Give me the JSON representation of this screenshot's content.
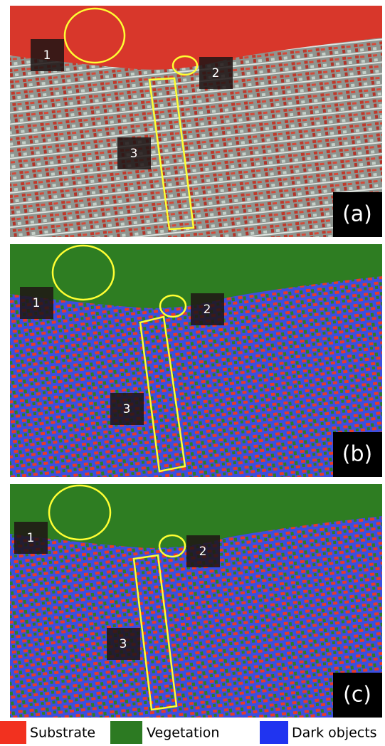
{
  "panels": [
    {
      "label": "(a)",
      "markers": [
        "1",
        "2",
        "3"
      ]
    },
    {
      "label": "(b)",
      "markers": [
        "1",
        "2",
        "3"
      ]
    },
    {
      "label": "(c)",
      "markers": [
        "1",
        "2",
        "3"
      ]
    }
  ],
  "legend": [
    "Substrate",
    "Vegetation",
    "Dark objects"
  ]
}
